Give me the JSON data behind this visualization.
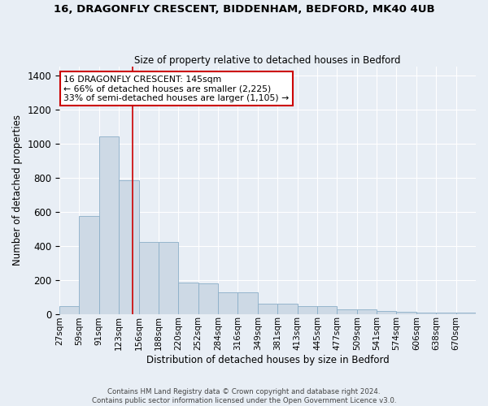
{
  "title": "16, DRAGONFLY CRESCENT, BIDDENHAM, BEDFORD, MK40 4UB",
  "subtitle": "Size of property relative to detached houses in Bedford",
  "xlabel": "Distribution of detached houses by size in Bedford",
  "ylabel": "Number of detached properties",
  "bar_color": "#cdd9e5",
  "bar_edge_color": "#8aaec8",
  "background_color": "#e8eef5",
  "grid_color": "#ffffff",
  "categories": [
    "27sqm",
    "59sqm",
    "91sqm",
    "123sqm",
    "156sqm",
    "188sqm",
    "220sqm",
    "252sqm",
    "284sqm",
    "316sqm",
    "349sqm",
    "381sqm",
    "413sqm",
    "445sqm",
    "477sqm",
    "509sqm",
    "541sqm",
    "574sqm",
    "606sqm",
    "638sqm",
    "670sqm"
  ],
  "bar_values": [
    47,
    572,
    1040,
    785,
    420,
    420,
    183,
    180,
    125,
    125,
    62,
    62,
    47,
    47,
    25,
    25,
    18,
    13,
    8,
    8,
    8
  ],
  "red_line_x": 3.67,
  "annotation_text": "16 DRAGONFLY CRESCENT: 145sqm\n← 66% of detached houses are smaller (2,225)\n33% of semi-detached houses are larger (1,105) →",
  "annotation_box_color": "#ffffff",
  "annotation_border_color": "#cc0000",
  "ylim": [
    0,
    1450
  ],
  "yticks": [
    0,
    200,
    400,
    600,
    800,
    1000,
    1200,
    1400
  ],
  "footnote": "Contains HM Land Registry data © Crown copyright and database right 2024.\nContains public sector information licensed under the Open Government Licence v3.0."
}
